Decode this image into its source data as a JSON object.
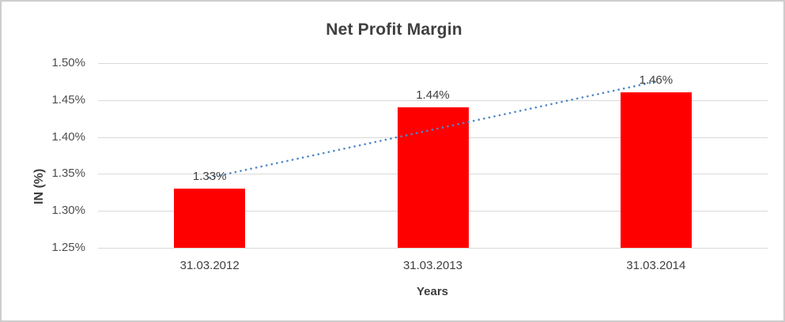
{
  "chart_data": {
    "type": "bar",
    "title": "Net Profit Margin",
    "xlabel": "Years",
    "ylabel": "IN (%)",
    "categories": [
      "31.03.2012",
      "31.03.2013",
      "31.03.2014"
    ],
    "values": [
      1.33,
      1.44,
      1.46
    ],
    "data_labels": [
      "1.33%",
      "1.44%",
      "1.46%"
    ],
    "ylim": [
      1.25,
      1.5
    ],
    "ytick_step": 0.05,
    "ytick_labels": [
      "1.25%",
      "1.30%",
      "1.35%",
      "1.40%",
      "1.45%",
      "1.50%"
    ],
    "grid": true,
    "legend": "none",
    "bar_color": "#ff0000",
    "trendline": {
      "type": "linear",
      "style": "dotted",
      "color": "#4f87c7",
      "endpoint_values": [
        1.345,
        1.475
      ]
    }
  },
  "colors": {
    "gridline": "#d9d9d9",
    "frame_border": "#cdcdcd",
    "title_text": "#3f3f3f",
    "tick_text": "#4d4d4d",
    "background": "#ffffff"
  }
}
